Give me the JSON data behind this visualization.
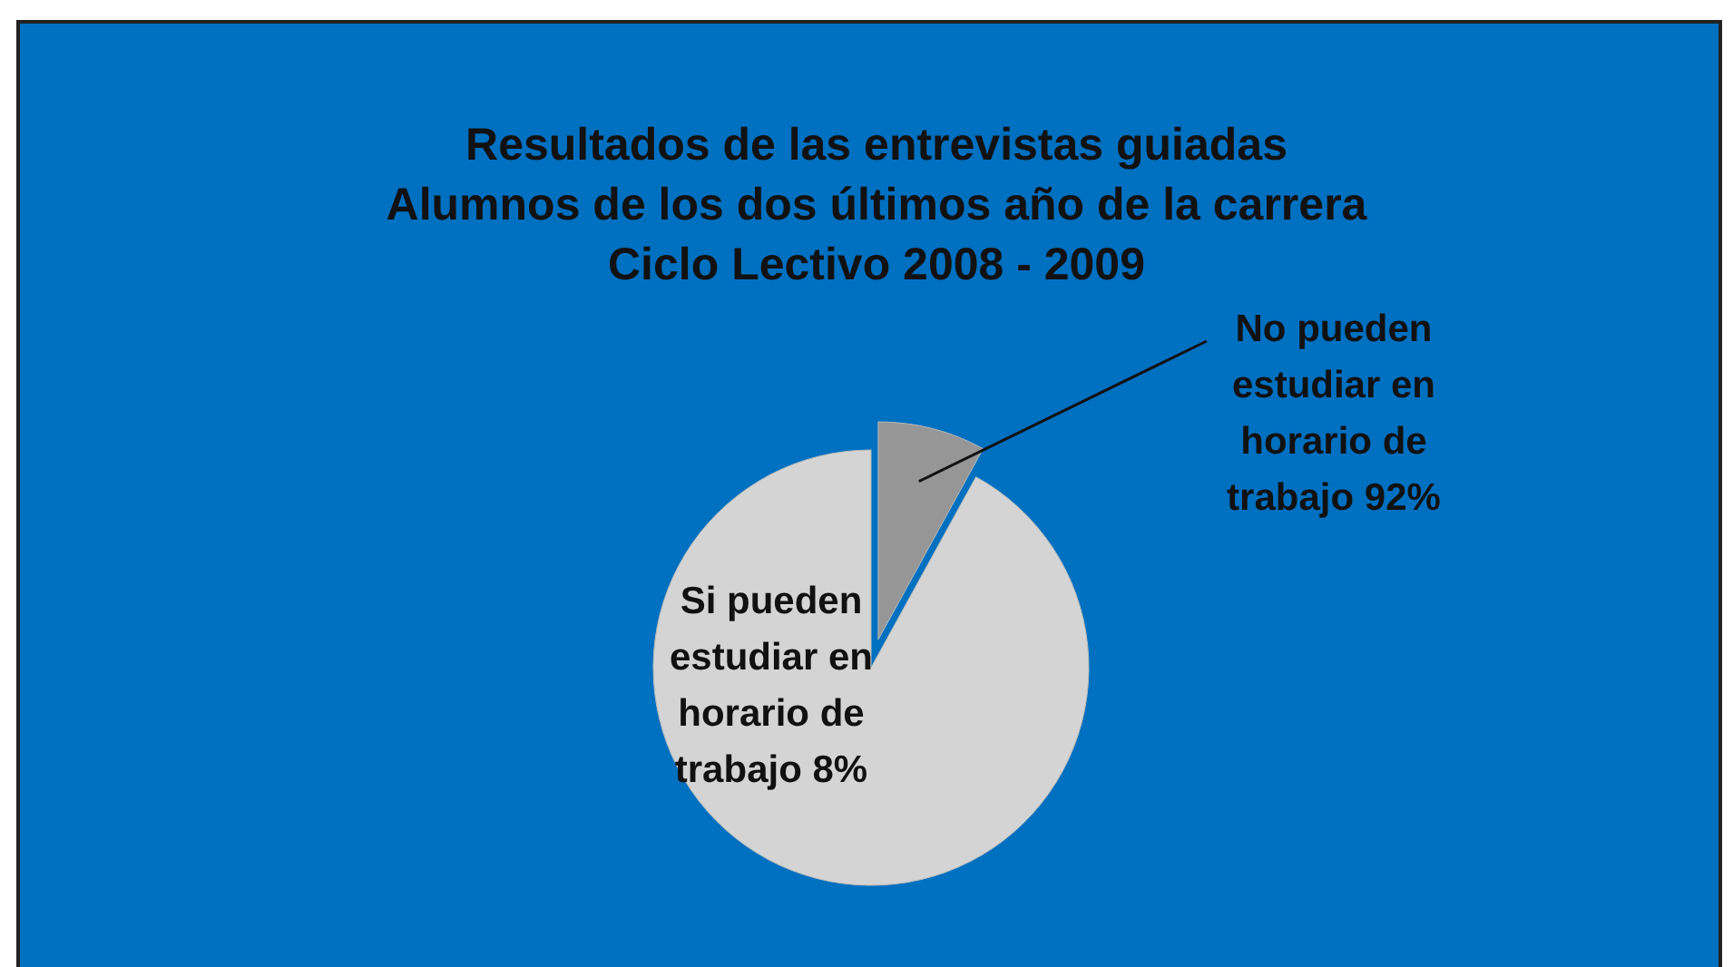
{
  "chart_data": {
    "type": "pie",
    "title": "Resultados de las entrevistas guiadas\nAlumnos de los dos últimos año de la carrera\nCiclo Lectivo 2008 - 2009",
    "categories": [
      "No pueden estudiar en horario de trabajo 92%",
      "Si pueden estudiar en horario de trabajo 8%"
    ],
    "values": [
      8,
      92
    ],
    "colors": [
      "#969696",
      "#d4d4d4"
    ]
  }
}
